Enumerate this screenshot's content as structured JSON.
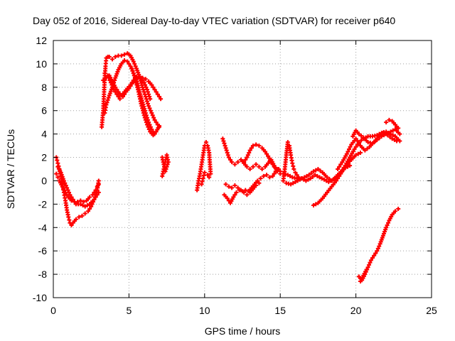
{
  "chart_data": {
    "type": "scatter",
    "title": "Day 052 of 2016, Sidereal Day-to-day VTEC variation (SDTVAR) for receiver p640",
    "xlabel": "GPS time / hours",
    "ylabel": "SDTVAR / TECUs",
    "xlim": [
      0,
      25
    ],
    "ylim": [
      -10,
      12
    ],
    "x_ticks": [
      "0",
      "5",
      "10",
      "15",
      "20",
      "25"
    ],
    "y_ticks": [
      "-10",
      "-8",
      "-6",
      "-4",
      "-2",
      "0",
      "2",
      "4",
      "6",
      "8",
      "10",
      "12"
    ],
    "grid": true,
    "legend": "none",
    "marker": "+",
    "color": "#ff0000",
    "series": [
      {
        "x": [
          0.2,
          0.3,
          0.4,
          0.5,
          0.6,
          0.7,
          0.8,
          0.9,
          1.0,
          1.1,
          1.2,
          1.3,
          1.5,
          1.7,
          1.9,
          2.1,
          2.3,
          2.5,
          2.7,
          2.9,
          3.0
        ],
        "y": [
          2.0,
          1.5,
          1.0,
          0.4,
          -0.3,
          -1.0,
          -1.7,
          -2.5,
          -3.1,
          -3.6,
          -3.8,
          -3.6,
          -3.3,
          -3.1,
          -3.0,
          -2.8,
          -2.6,
          -2.2,
          -1.6,
          -0.8,
          0.0
        ]
      },
      {
        "x": [
          0.2,
          0.3,
          0.4,
          0.6,
          0.8,
          1.0,
          1.2,
          1.4,
          1.6,
          1.8,
          2.0,
          2.2,
          2.4,
          2.6,
          2.8,
          2.9,
          3.0
        ],
        "y": [
          0.6,
          0.3,
          0.0,
          -0.5,
          -1.0,
          -1.4,
          -1.7,
          -1.8,
          -1.8,
          -1.7,
          -1.8,
          -1.7,
          -1.4,
          -1.2,
          -0.8,
          -0.5,
          -0.3
        ]
      },
      {
        "x": [
          0.3,
          0.5,
          0.7,
          0.9,
          1.1,
          1.3,
          1.5,
          1.8,
          2.1,
          2.4,
          2.7,
          3.0
        ],
        "y": [
          1.2,
          0.7,
          0.0,
          -0.6,
          -1.2,
          -1.6,
          -2.0,
          -2.0,
          -2.2,
          -2.0,
          -1.6,
          -1.0
        ]
      },
      {
        "x": [
          3.2,
          3.3,
          3.35,
          3.4,
          3.45,
          3.5,
          3.6,
          3.7,
          3.9,
          4.1,
          4.3,
          4.5,
          4.7,
          4.9,
          5.0,
          5.1,
          5.3,
          5.5,
          5.7,
          5.9,
          6.1,
          6.3,
          6.5,
          6.7,
          6.9,
          7.0
        ],
        "y": [
          4.6,
          6.0,
          7.4,
          8.8,
          9.8,
          10.5,
          10.6,
          10.6,
          10.4,
          10.6,
          10.7,
          10.7,
          10.8,
          10.9,
          10.8,
          10.7,
          10.2,
          9.6,
          8.9,
          8.0,
          7.2,
          6.4,
          5.8,
          5.2,
          4.8,
          4.6
        ]
      },
      {
        "x": [
          3.4,
          3.5,
          3.7,
          3.9,
          4.1,
          4.3,
          4.5,
          4.7,
          4.9,
          5.1,
          5.3,
          5.5,
          5.7,
          5.9,
          6.1,
          6.3,
          6.5,
          6.7
        ],
        "y": [
          5.8,
          6.5,
          7.3,
          8.0,
          8.8,
          9.5,
          10.0,
          10.3,
          10.2,
          9.8,
          9.2,
          8.5,
          7.6,
          6.7,
          5.8,
          5.0,
          4.4,
          4.0
        ]
      },
      {
        "x": [
          3.3,
          3.5,
          3.7,
          3.9,
          4.1,
          4.3,
          4.5,
          4.7,
          4.9,
          5.1,
          5.3,
          5.5,
          5.7,
          5.9,
          6.1,
          6.3,
          6.5,
          6.7,
          6.9,
          7.1
        ],
        "y": [
          8.6,
          8.8,
          9.0,
          8.5,
          8.0,
          7.6,
          7.3,
          7.6,
          7.9,
          8.2,
          8.6,
          8.9,
          8.9,
          8.8,
          8.7,
          8.5,
          8.2,
          7.8,
          7.4,
          7.0
        ]
      },
      {
        "x": [
          3.4,
          3.6,
          3.8,
          4.0,
          4.2,
          4.4,
          4.6,
          4.8,
          5.0,
          5.2,
          5.4,
          5.6,
          5.8,
          6.0,
          6.2,
          6.4
        ],
        "y": [
          9.2,
          9.0,
          8.4,
          7.8,
          7.4,
          7.0,
          7.2,
          7.6,
          7.9,
          8.3,
          8.6,
          8.8,
          8.8,
          8.4,
          7.8,
          7.0
        ]
      },
      {
        "x": [
          5.2,
          5.4,
          5.6,
          5.8,
          6.0,
          6.2,
          6.4,
          6.6,
          6.8,
          7.0
        ],
        "y": [
          9.6,
          8.8,
          7.8,
          6.6,
          5.6,
          4.8,
          4.2,
          3.9,
          4.2,
          4.7
        ]
      },
      {
        "x": [
          7.2,
          7.3,
          7.4,
          7.5,
          7.6,
          7.4,
          7.3,
          7.2
        ],
        "y": [
          0.4,
          1.0,
          1.6,
          2.2,
          1.6,
          0.8,
          1.4,
          2.0
        ]
      },
      {
        "x": [
          9.5,
          9.6,
          9.7,
          9.8,
          9.9,
          10.0,
          10.1,
          10.2,
          10.3,
          10.4,
          10.3,
          10.2,
          10.0,
          9.9,
          9.8
        ],
        "y": [
          -0.8,
          0.0,
          0.6,
          1.4,
          2.2,
          3.0,
          3.3,
          3.0,
          2.4,
          0.6,
          0.3,
          0.5,
          0.7,
          0.2,
          -0.3
        ]
      },
      {
        "x": [
          11.2,
          11.4,
          11.6,
          11.8,
          12.0,
          12.2,
          12.4,
          12.6,
          12.8,
          13.0,
          13.2,
          13.4,
          13.6,
          13.8,
          14.0,
          14.2,
          14.4,
          14.6,
          14.8,
          15.0
        ],
        "y": [
          3.6,
          2.8,
          2.0,
          1.6,
          1.4,
          1.6,
          1.8,
          1.5,
          1.2,
          1.0,
          1.2,
          1.4,
          1.2,
          1.0,
          1.2,
          1.5,
          1.8,
          1.3,
          0.8,
          0.6
        ]
      },
      {
        "x": [
          11.3,
          11.5,
          11.7,
          11.9,
          12.1,
          12.3,
          12.5,
          12.7,
          12.9,
          13.1,
          13.3,
          13.5,
          13.7,
          13.9,
          14.1,
          14.3,
          14.5,
          14.7,
          14.9
        ],
        "y": [
          -1.2,
          -1.5,
          -1.9,
          -1.4,
          -1.0,
          -0.8,
          -0.9,
          -0.8,
          -0.9,
          -0.6,
          -0.3,
          0.0,
          0.2,
          0.4,
          0.5,
          0.3,
          0.4,
          0.8,
          1.0
        ]
      },
      {
        "x": [
          11.4,
          11.6,
          11.8,
          12.0,
          12.2,
          12.4,
          12.6,
          12.8,
          13.0,
          13.2,
          13.4,
          13.6
        ],
        "y": [
          -0.3,
          -0.5,
          -0.6,
          -0.4,
          -0.6,
          -0.8,
          -1.0,
          -1.2,
          -1.0,
          -0.7,
          -0.4,
          -0.2
        ]
      },
      {
        "x": [
          12.6,
          12.8,
          13.0,
          13.2,
          13.4,
          13.6,
          13.8,
          14.0,
          14.2,
          14.4,
          14.6,
          14.8,
          15.0
        ],
        "y": [
          1.6,
          2.0,
          2.6,
          3.0,
          3.1,
          3.0,
          2.8,
          2.5,
          2.1,
          1.6,
          1.2,
          1.0,
          0.8
        ]
      },
      {
        "x": [
          15.2,
          15.3,
          15.4,
          15.5,
          15.6,
          15.7,
          15.8,
          15.9,
          16.0,
          16.1,
          16.2
        ],
        "y": [
          0.0,
          1.0,
          2.2,
          3.3,
          3.0,
          2.2,
          1.5,
          1.0,
          0.7,
          0.5,
          0.3
        ]
      },
      {
        "x": [
          15.2,
          15.5,
          15.8,
          16.1,
          16.4,
          16.7,
          17.0,
          17.3,
          17.6,
          17.9,
          18.2,
          18.5,
          18.8,
          19.1,
          19.4,
          19.7,
          20.0,
          20.3
        ],
        "y": [
          0.6,
          0.5,
          0.3,
          0.2,
          0.2,
          0.0,
          0.2,
          0.5,
          0.3,
          0.1,
          -0.1,
          0.1,
          0.5,
          0.9,
          1.4,
          1.8,
          2.2,
          2.4
        ]
      },
      {
        "x": [
          15.4,
          15.7,
          16.0,
          16.3,
          16.6,
          16.9,
          17.2,
          17.5,
          17.8,
          18.1,
          18.4,
          18.7,
          19.0,
          19.3,
          19.6
        ],
        "y": [
          -0.2,
          -0.3,
          -0.1,
          0.1,
          0.3,
          0.5,
          0.8,
          1.0,
          0.7,
          0.3,
          0.0,
          0.3,
          0.7,
          1.1,
          1.3
        ]
      },
      {
        "x": [
          17.2,
          17.5,
          17.8,
          18.1,
          18.4,
          18.7,
          19.0,
          19.3,
          19.6,
          19.9,
          20.2,
          20.5,
          20.8,
          21.1,
          21.4,
          21.7,
          22.0,
          22.3,
          22.6,
          22.9
        ],
        "y": [
          -2.1,
          -1.9,
          -1.5,
          -1.0,
          -0.5,
          0.0,
          0.6,
          1.3,
          2.0,
          2.7,
          3.3,
          3.6,
          3.8,
          3.8,
          3.9,
          4.1,
          4.2,
          4.0,
          3.8,
          3.4
        ]
      },
      {
        "x": [
          18.8,
          19.1,
          19.4,
          19.7,
          20.0,
          20.3,
          20.6,
          20.9,
          21.2,
          21.5,
          21.8,
          22.1,
          22.4,
          22.7
        ],
        "y": [
          1.0,
          1.6,
          2.3,
          3.1,
          3.6,
          3.0,
          2.6,
          2.9,
          3.3,
          3.8,
          4.1,
          3.9,
          3.6,
          3.4
        ]
      },
      {
        "x": [
          19.8,
          20.0,
          20.2,
          20.5,
          20.8,
          21.1,
          21.4,
          21.7,
          22.0,
          22.3,
          22.6,
          22.9
        ],
        "y": [
          3.8,
          4.3,
          4.0,
          3.7,
          3.3,
          3.2,
          3.5,
          3.8,
          4.0,
          4.2,
          4.4,
          4.0
        ]
      },
      {
        "x": [
          22.0,
          22.2,
          22.4,
          22.6,
          22.8
        ],
        "y": [
          5.0,
          5.2,
          5.1,
          4.8,
          4.5
        ]
      },
      {
        "x": [
          20.2,
          20.4,
          20.6,
          20.8,
          21.0,
          21.2,
          21.4,
          21.6,
          21.8,
          22.0,
          22.2,
          22.4,
          22.6,
          22.8
        ],
        "y": [
          -8.2,
          -8.5,
          -8.0,
          -7.4,
          -6.8,
          -6.4,
          -6.0,
          -5.4,
          -4.7,
          -4.0,
          -3.4,
          -2.9,
          -2.6,
          -2.4
        ]
      },
      {
        "x": [
          20.3,
          20.5,
          20.7
        ],
        "y": [
          -8.6,
          -8.1,
          -7.6
        ]
      }
    ]
  }
}
